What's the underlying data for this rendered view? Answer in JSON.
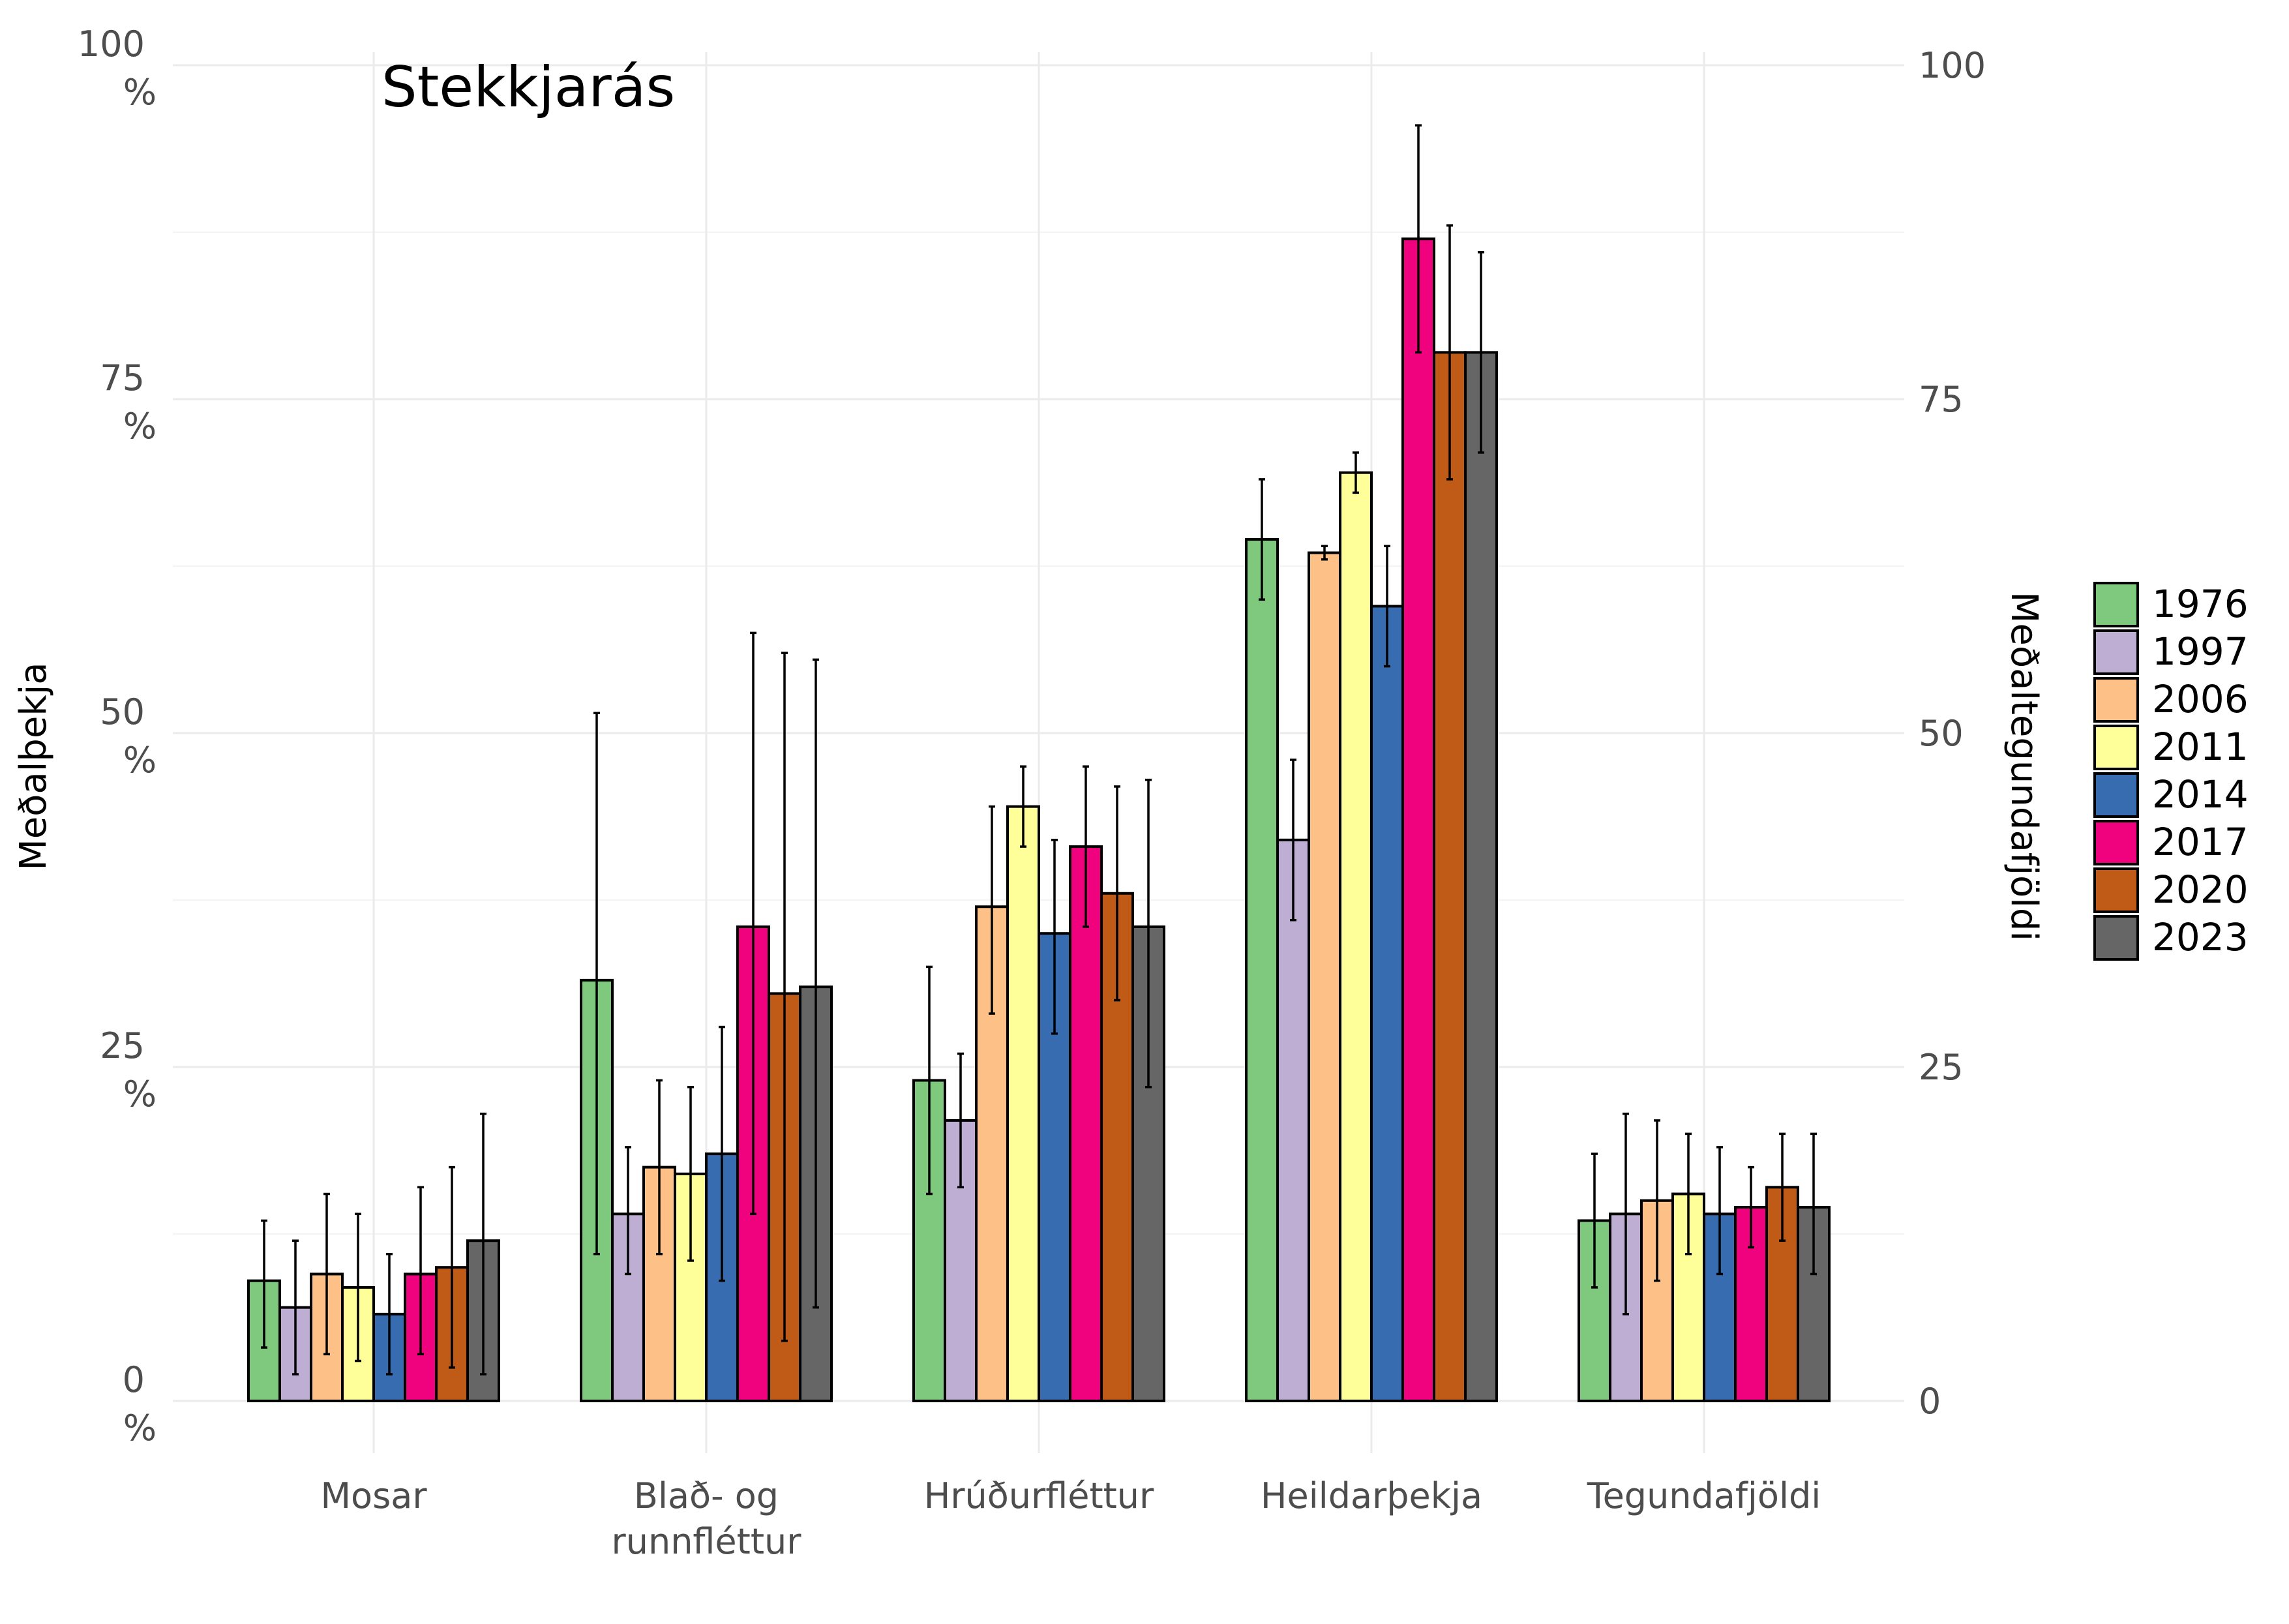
{
  "chart_data": {
    "type": "bar",
    "title": "Stekkjarás",
    "ylabel": "Meðalþekja",
    "ylabel_right": "Meðaltegundafjöldi",
    "xlabel": "",
    "ylim": [
      0,
      100
    ],
    "y_ticks_left": [
      {
        "value": 0,
        "line1": "0",
        "line2": "%"
      },
      {
        "value": 25,
        "line1": "25",
        "line2": "%"
      },
      {
        "value": 50,
        "line1": "50",
        "line2": "%"
      },
      {
        "value": 75,
        "line1": "75",
        "line2": "%"
      },
      {
        "value": 100,
        "line1": "100",
        "line2": "%"
      }
    ],
    "y_ticks_right": [
      "0",
      "25",
      "50",
      "75",
      "100"
    ],
    "categories": [
      [
        "Mosar"
      ],
      [
        "Blað- og",
        "runnfléttur"
      ],
      [
        "Hrúðurfléttur"
      ],
      [
        "Heildarþekja"
      ],
      [
        "Tegundafjöldi"
      ]
    ],
    "grid": true,
    "legend_position": "right",
    "series": [
      {
        "name": "1976",
        "color": "#7fc97f",
        "values": [
          9.0,
          31.5,
          24.0,
          64.5,
          13.5
        ],
        "lower": [
          4.0,
          11.0,
          15.5,
          60.0,
          8.5
        ],
        "upper": [
          13.5,
          51.5,
          32.5,
          69.0,
          18.5
        ]
      },
      {
        "name": "1997",
        "color": "#beaed4",
        "values": [
          7.0,
          14.0,
          21.0,
          42.0,
          14.0
        ],
        "lower": [
          2.0,
          9.5,
          16.0,
          36.0,
          6.5
        ],
        "upper": [
          12.0,
          19.0,
          26.0,
          48.0,
          21.5
        ]
      },
      {
        "name": "2006",
        "color": "#fdc086",
        "values": [
          9.5,
          17.5,
          37.0,
          63.5,
          15.0
        ],
        "lower": [
          3.5,
          11.0,
          29.0,
          63.0,
          9.0
        ],
        "upper": [
          15.5,
          24.0,
          44.5,
          64.0,
          21.0
        ]
      },
      {
        "name": "2011",
        "color": "#ffff99",
        "values": [
          8.5,
          17.0,
          44.5,
          69.5,
          15.5
        ],
        "lower": [
          3.0,
          10.5,
          41.5,
          68.0,
          11.0
        ],
        "upper": [
          14.0,
          23.5,
          47.5,
          71.0,
          20.0
        ]
      },
      {
        "name": "2014",
        "color": "#386cb0",
        "values": [
          6.5,
          18.5,
          35.0,
          59.5,
          14.0
        ],
        "lower": [
          2.0,
          9.0,
          27.5,
          55.0,
          9.5
        ],
        "upper": [
          11.0,
          28.0,
          42.0,
          64.0,
          19.0
        ]
      },
      {
        "name": "2017",
        "color": "#f0027f",
        "values": [
          9.5,
          35.5,
          41.5,
          87.0,
          14.5
        ],
        "lower": [
          3.5,
          14.0,
          35.5,
          78.5,
          11.5
        ],
        "upper": [
          16.0,
          57.5,
          47.5,
          95.5,
          17.5
        ]
      },
      {
        "name": "2020",
        "color": "#bf5b17",
        "values": [
          10.0,
          30.5,
          38.0,
          78.5,
          16.0
        ],
        "lower": [
          2.5,
          4.5,
          30.0,
          69.0,
          12.0
        ],
        "upper": [
          17.5,
          56.0,
          46.0,
          88.0,
          20.0
        ]
      },
      {
        "name": "2023",
        "color": "#666666",
        "values": [
          12.0,
          31.0,
          35.5,
          78.5,
          14.5
        ],
        "lower": [
          2.0,
          7.0,
          23.5,
          71.0,
          9.5
        ],
        "upper": [
          21.5,
          55.5,
          46.5,
          86.0,
          20.0
        ]
      }
    ]
  }
}
